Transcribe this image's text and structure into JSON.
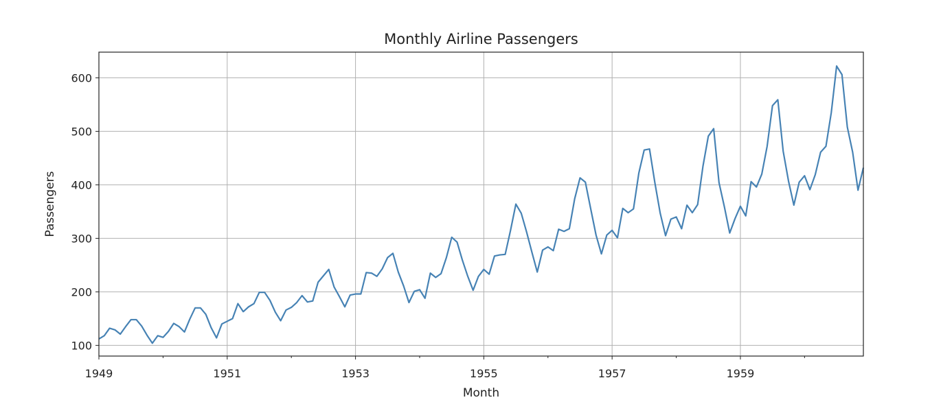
{
  "chart_data": {
    "type": "line",
    "title": "Monthly Airline Passengers",
    "xlabel": "Month",
    "ylabel": "Passengers",
    "xlim": [
      1949.0,
      1960.917
    ],
    "ylim": [
      80,
      648
    ],
    "grid": true,
    "legend": "none",
    "x_ticks": [
      1949,
      1951,
      1953,
      1955,
      1957,
      1959
    ],
    "x_minor_ticks": [
      1950,
      1952,
      1954,
      1956,
      1958,
      1960
    ],
    "y_ticks": [
      100,
      200,
      300,
      400,
      500,
      600
    ],
    "colors": {
      "line": "#4682b4"
    },
    "series": [
      {
        "x_start": "1949-01",
        "frequency": "monthly",
        "values": [
          112,
          118,
          132,
          129,
          121,
          135,
          148,
          148,
          136,
          119,
          104,
          118,
          115,
          126,
          141,
          135,
          125,
          149,
          170,
          170,
          158,
          133,
          114,
          140,
          145,
          150,
          178,
          163,
          172,
          178,
          199,
          199,
          184,
          162,
          146,
          166,
          171,
          180,
          193,
          181,
          183,
          218,
          230,
          242,
          209,
          191,
          172,
          194,
          196,
          196,
          236,
          235,
          229,
          243,
          264,
          272,
          237,
          211,
          180,
          201,
          204,
          188,
          235,
          227,
          234,
          264,
          302,
          293,
          259,
          229,
          203,
          229,
          242,
          233,
          267,
          269,
          270,
          315,
          364,
          347,
          312,
          274,
          237,
          278,
          284,
          277,
          317,
          313,
          318,
          374,
          413,
          405,
          355,
          306,
          271,
          306,
          315,
          301,
          356,
          348,
          355,
          422,
          465,
          467,
          404,
          347,
          305,
          336,
          340,
          318,
          362,
          348,
          363,
          435,
          491,
          505,
          404,
          359,
          310,
          337,
          360,
          342,
          406,
          396,
          420,
          472,
          548,
          559,
          463,
          407,
          362,
          405,
          417,
          391,
          419,
          461,
          472,
          535,
          622,
          606,
          508,
          461,
          390,
          432
        ]
      }
    ]
  }
}
